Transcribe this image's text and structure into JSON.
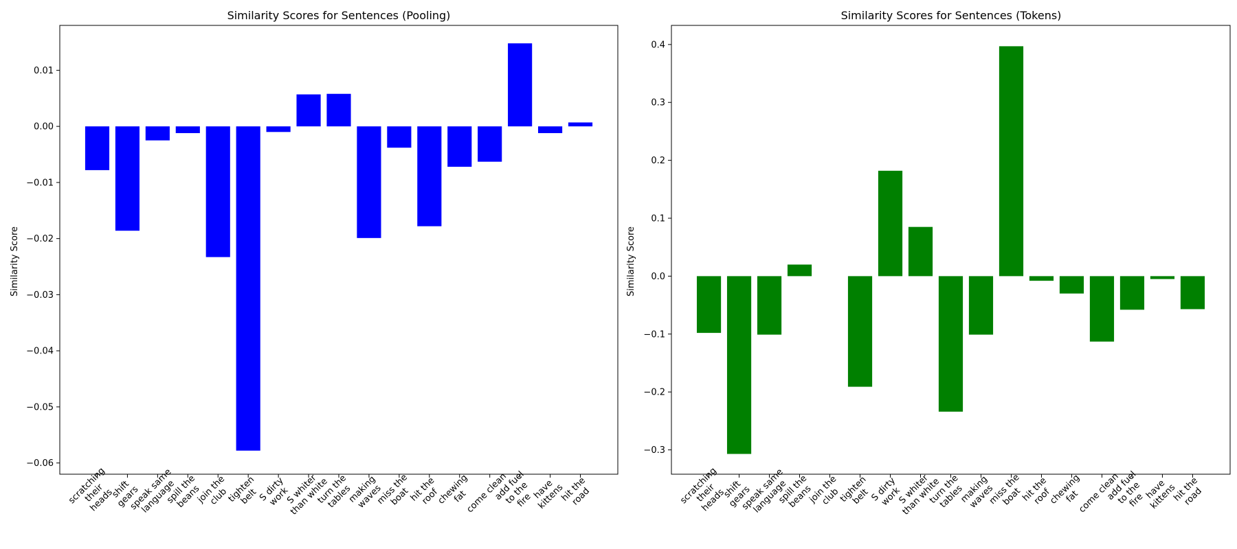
{
  "chart_data": [
    {
      "type": "bar",
      "title": "Similarity Scores for Sentences (Pooling)",
      "xlabel": "",
      "ylabel": "Similarity Score",
      "color": "#0000ff",
      "ylim": [
        -0.062,
        0.018
      ],
      "yticks": [
        0.01,
        0.0,
        -0.01,
        -0.02,
        -0.03,
        -0.04,
        -0.05,
        -0.06
      ],
      "ytick_labels": [
        "0.01",
        "0.00",
        "−0.01",
        "−0.02",
        "−0.03",
        "−0.04",
        "−0.05",
        "−0.06"
      ],
      "categories": [
        "scratching\ntheir\nheads",
        "shift\ngears",
        "speak same\nlanguage",
        "spill the\nbeans",
        "join the\nclub",
        "tighten\nbelt",
        "S dirty\nwork",
        "S whiter\nthan white",
        "turn the\ntables",
        "making\nwaves",
        "miss the\nboat",
        "hit the\nroof",
        "chewing\nfat",
        "come clean",
        "add fuel\nto the\nfire",
        "have\nkittens",
        "hit the\nroad"
      ],
      "values": [
        -0.0078,
        -0.0186,
        -0.0025,
        -0.0012,
        -0.0233,
        -0.0578,
        -0.001,
        0.0057,
        0.0058,
        -0.0199,
        -0.0038,
        -0.0178,
        -0.0072,
        -0.0063,
        0.0148,
        -0.0012,
        0.0007
      ]
    },
    {
      "type": "bar",
      "title": "Similarity Scores for Sentences (Tokens)",
      "xlabel": "",
      "ylabel": "Similarity Score",
      "color": "#008000",
      "ylim": [
        -0.342,
        0.433
      ],
      "yticks": [
        0.4,
        0.3,
        0.2,
        0.1,
        0.0,
        -0.1,
        -0.2,
        -0.3
      ],
      "ytick_labels": [
        "0.4",
        "0.3",
        "0.2",
        "0.1",
        "0.0",
        "−0.1",
        "−0.2",
        "−0.3"
      ],
      "categories": [
        "scratching\ntheir\nheads",
        "shift\ngears",
        "speak same\nlanguage",
        "spill the\nbeans",
        "join the\nclub",
        "tighten\nbelt",
        "S dirty\nwork",
        "S whiter\nthan white",
        "turn the\ntables",
        "making\nwaves",
        "miss the\nboat",
        "hit the\nroof",
        "chewing\nfat",
        "come clean",
        "add fuel\nto the\nfire",
        "have\nkittens",
        "hit the\nroad"
      ],
      "values": [
        -0.098,
        -0.307,
        -0.101,
        0.02,
        0.0,
        -0.191,
        0.182,
        0.085,
        -0.234,
        -0.101,
        0.397,
        -0.008,
        -0.03,
        -0.113,
        -0.058,
        -0.005,
        -0.057
      ]
    }
  ]
}
